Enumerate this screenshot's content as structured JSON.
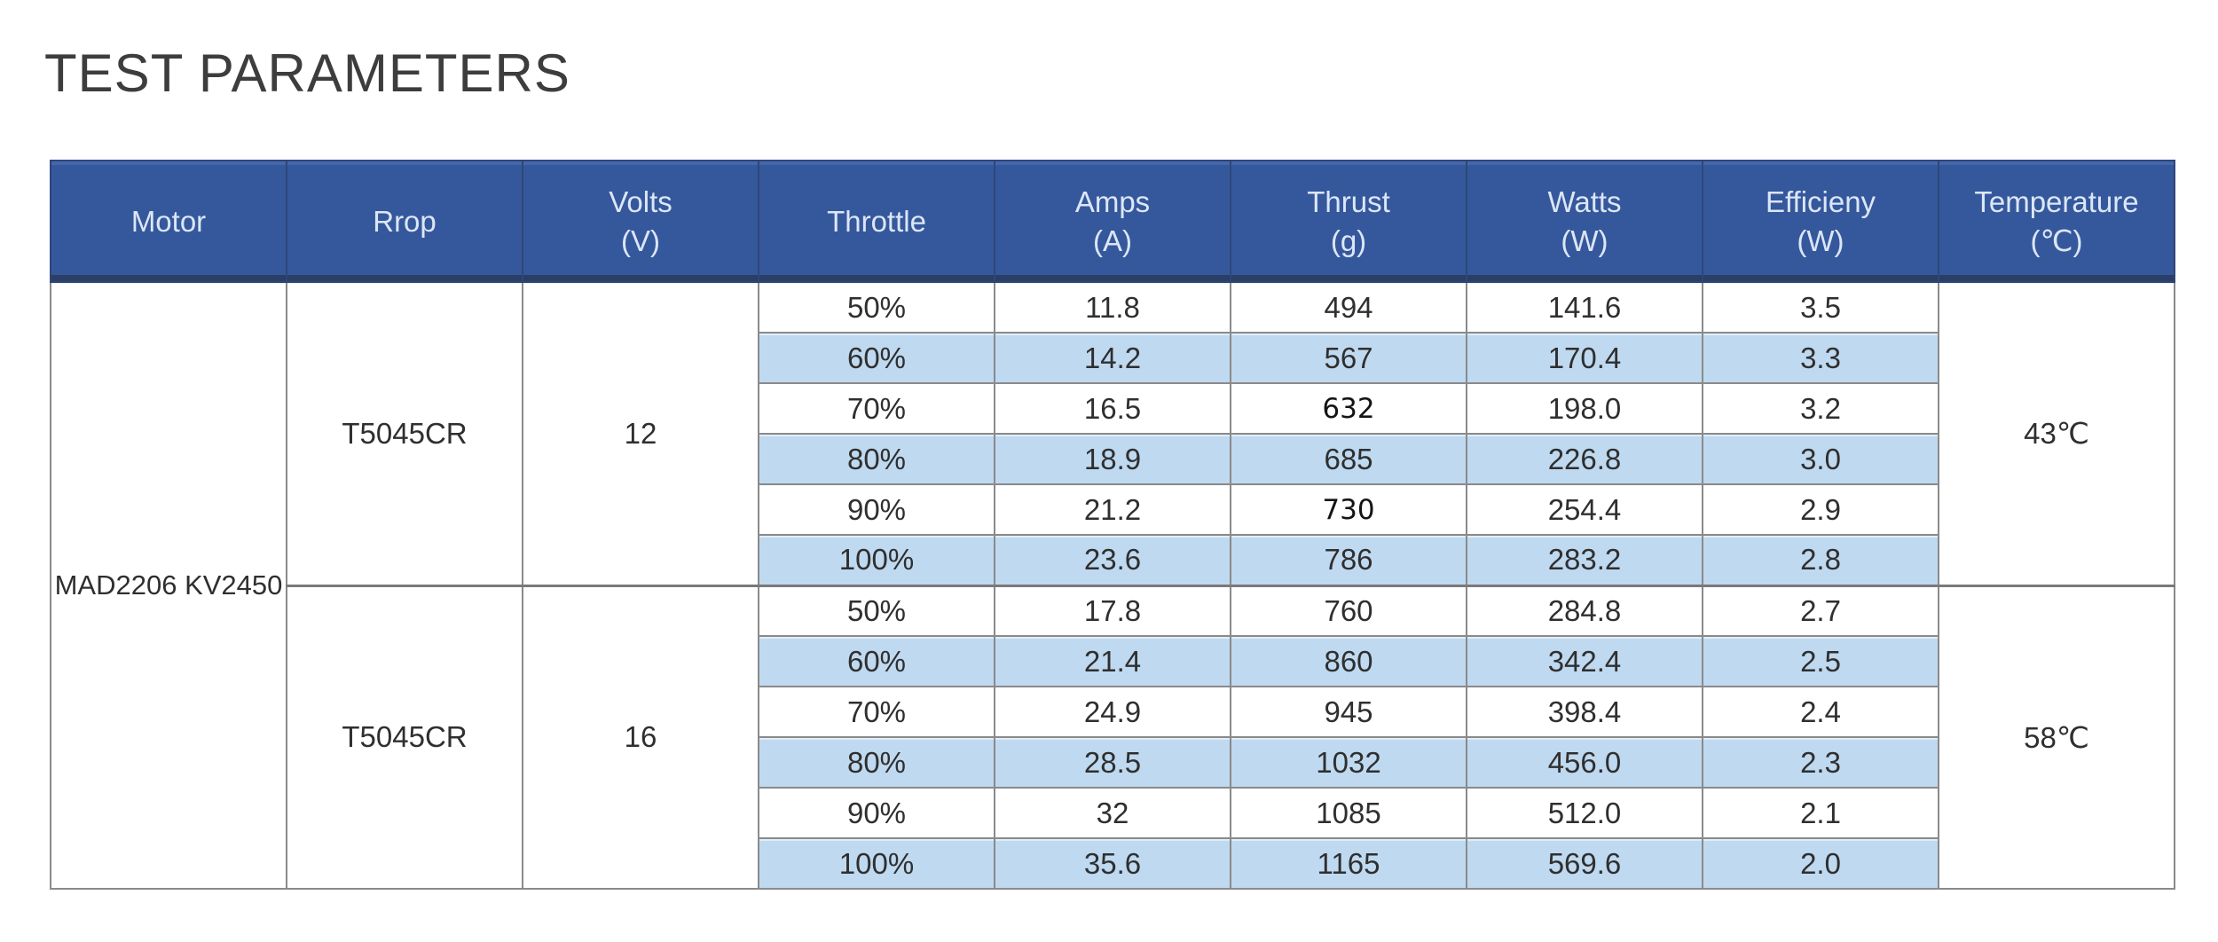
{
  "chart_data": {
    "type": "table",
    "title": "TEST PARAMETERS",
    "colors": {
      "header_bg": "#35589d",
      "header_text": "#dce6f5",
      "stripe_row": "#bfd9f0",
      "grid_line": "#8a8a8a",
      "body_text": "#2f2f2f",
      "title_text": "#3d3d3d"
    },
    "columns": [
      {
        "key": "motor",
        "label": "Motor",
        "unit": ""
      },
      {
        "key": "prop",
        "label": "Rrop",
        "unit": ""
      },
      {
        "key": "volts",
        "label": "Volts",
        "unit": "(V)"
      },
      {
        "key": "throttle",
        "label": "Throttle",
        "unit": ""
      },
      {
        "key": "amps",
        "label": "Amps",
        "unit": "(A)"
      },
      {
        "key": "thrust",
        "label": "Thrust",
        "unit": "(g)"
      },
      {
        "key": "watts",
        "label": "Watts",
        "unit": "(W)"
      },
      {
        "key": "efficiency",
        "label": "Efficieny",
        "unit": "(W)"
      },
      {
        "key": "temperature",
        "label": "Temperature",
        "unit": "(℃)"
      }
    ],
    "motor": "MAD2206 KV2450",
    "blocks": [
      {
        "prop": "T5045CR",
        "volts": "12",
        "temperature": "43℃",
        "rows": [
          {
            "throttle": "50%",
            "amps": "11.8",
            "thrust": "494",
            "watts": "141.6",
            "efficiency": "3.5"
          },
          {
            "throttle": "60%",
            "amps": "14.2",
            "thrust": "567",
            "watts": "170.4",
            "efficiency": "3.3"
          },
          {
            "throttle": "70%",
            "amps": "16.5",
            "thrust": "632",
            "watts": "198.0",
            "efficiency": "3.2"
          },
          {
            "throttle": "80%",
            "amps": "18.9",
            "thrust": "685",
            "watts": "226.8",
            "efficiency": "3.0"
          },
          {
            "throttle": "90%",
            "amps": "21.2",
            "thrust": "730",
            "watts": "254.4",
            "efficiency": "2.9"
          },
          {
            "throttle": "100%",
            "amps": "23.6",
            "thrust": "786",
            "watts": "283.2",
            "efficiency": "2.8"
          }
        ]
      },
      {
        "prop": "T5045CR",
        "volts": "16",
        "temperature": "58℃",
        "rows": [
          {
            "throttle": "50%",
            "amps": "17.8",
            "thrust": "760",
            "watts": "284.8",
            "efficiency": "2.7"
          },
          {
            "throttle": "60%",
            "amps": "21.4",
            "thrust": "860",
            "watts": "342.4",
            "efficiency": "2.5"
          },
          {
            "throttle": "70%",
            "amps": "24.9",
            "thrust": "945",
            "watts": "398.4",
            "efficiency": "2.4"
          },
          {
            "throttle": "80%",
            "amps": "28.5",
            "thrust": "1032",
            "watts": "456.0",
            "efficiency": "2.3"
          },
          {
            "throttle": "90%",
            "amps": "32",
            "thrust": "1085",
            "watts": "512.0",
            "efficiency": "2.1"
          },
          {
            "throttle": "100%",
            "amps": "35.6",
            "thrust": "1165",
            "watts": "569.6",
            "efficiency": "2.0"
          }
        ]
      }
    ]
  }
}
